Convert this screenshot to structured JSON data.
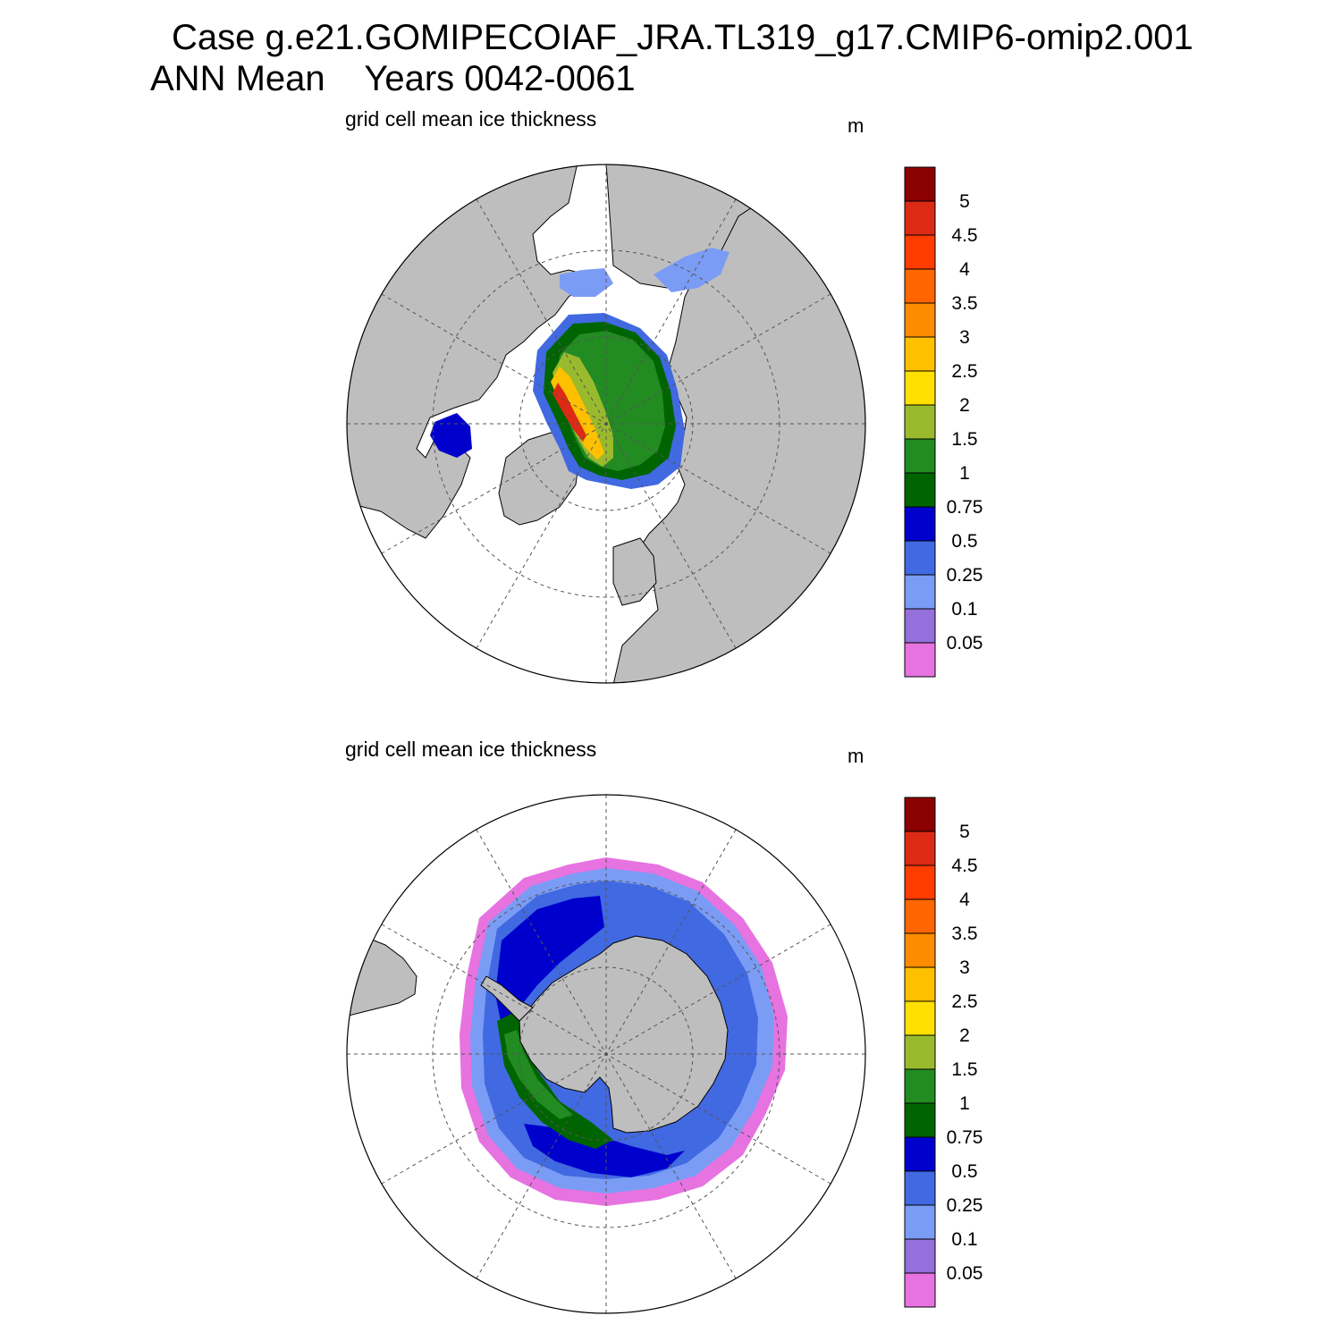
{
  "header": {
    "title_line1": "Case g.e21.GOMIPECOIAF_JRA.TL319_g17.CMIP6-omip2.001",
    "title_line2": "ANN Mean    Years 0042-0061"
  },
  "panels": [
    {
      "id": "north",
      "title": "grid cell mean ice thickness",
      "units": "m",
      "hemisphere": "Northern"
    },
    {
      "id": "south",
      "title": "grid cell mean ice thickness",
      "units": "m",
      "hemisphere": "Southern"
    }
  ],
  "colorbar": {
    "labels": [
      "5",
      "4.5",
      "4",
      "3.5",
      "3",
      "2.5",
      "2",
      "1.5",
      "1",
      "0.75",
      "0.5",
      "0.25",
      "0.1",
      "0.05"
    ],
    "colors_top_to_bottom": [
      "#8b0000",
      "#dc2a14",
      "#ff3c00",
      "#ff6600",
      "#ff8c00",
      "#ffc000",
      "#ffe000",
      "#9aba2e",
      "#228b22",
      "#006400",
      "#0000cd",
      "#4169e1",
      "#7b9cf5",
      "#9370db",
      "#e673e0"
    ]
  },
  "colors": {
    "land": "#bebebe",
    "ocean": "#ffffff",
    "grid": "#555555"
  }
}
